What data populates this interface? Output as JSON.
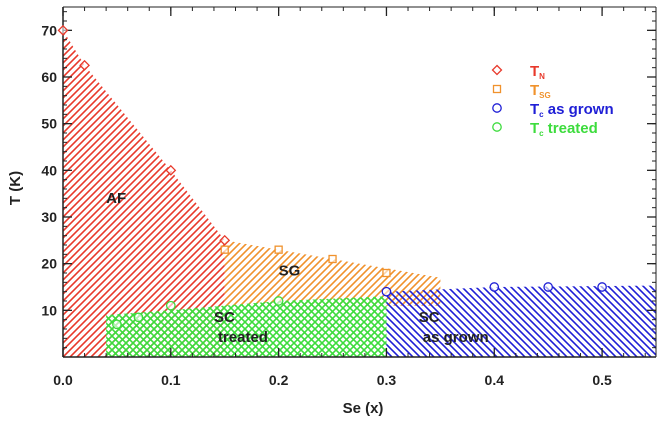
{
  "chart_data": {
    "type": "scatter",
    "xlabel": "Se (x)",
    "ylabel": "T (K)",
    "xlim": [
      0,
      0.55
    ],
    "ylim": [
      0,
      75
    ],
    "x_ticks": [
      0.0,
      0.1,
      0.2,
      0.3,
      0.4,
      0.5
    ],
    "x_tick_labels": [
      "0.0",
      "0.1",
      "0.2",
      "0.3",
      "0.4",
      "0.5"
    ],
    "y_ticks": [
      10,
      20,
      30,
      40,
      50,
      60,
      70
    ],
    "y_tick_labels": [
      "10",
      "20",
      "30",
      "40",
      "50",
      "60",
      "70"
    ],
    "legend_placement": "top-right",
    "series": [
      {
        "name": "T_N",
        "legend_main": "T",
        "legend_sub": "N",
        "marker": "diamond",
        "color": "#e8392b",
        "points": [
          {
            "x": 0.0,
            "y": 70
          },
          {
            "x": 0.02,
            "y": 62.5
          },
          {
            "x": 0.1,
            "y": 40
          },
          {
            "x": 0.15,
            "y": 25
          }
        ]
      },
      {
        "name": "T_SG",
        "legend_main": "T",
        "legend_sub": "SG",
        "marker": "square",
        "color": "#f0922c",
        "points": [
          {
            "x": 0.15,
            "y": 23
          },
          {
            "x": 0.2,
            "y": 23
          },
          {
            "x": 0.25,
            "y": 21
          },
          {
            "x": 0.3,
            "y": 18
          }
        ]
      },
      {
        "name": "T_c as grown",
        "legend_main": "T",
        "legend_sub": "c",
        "legend_rest": " as grown",
        "marker": "circle",
        "color": "#1f1fd6",
        "points": [
          {
            "x": 0.3,
            "y": 14
          },
          {
            "x": 0.4,
            "y": 15
          },
          {
            "x": 0.45,
            "y": 15
          },
          {
            "x": 0.5,
            "y": 15
          }
        ]
      },
      {
        "name": "T_c treated",
        "legend_main": "T",
        "legend_sub": "c",
        "legend_rest": " treated",
        "marker": "circle",
        "color": "#3ddc3d",
        "points": [
          {
            "x": 0.05,
            "y": 7
          },
          {
            "x": 0.07,
            "y": 8.5
          },
          {
            "x": 0.1,
            "y": 11
          },
          {
            "x": 0.2,
            "y": 12
          }
        ]
      }
    ],
    "regions": [
      {
        "name": "AF",
        "label_lines": [
          "AF"
        ],
        "color": "#e8392b",
        "hatch": "diagonal-up",
        "polygon": [
          [
            0,
            0
          ],
          [
            0,
            70
          ],
          [
            0.02,
            62.5
          ],
          [
            0.1,
            40
          ],
          [
            0.15,
            25
          ],
          [
            0.15,
            0
          ]
        ],
        "label_at": [
          0.04,
          33
        ]
      },
      {
        "name": "SG",
        "label_lines": [
          "SG"
        ],
        "color": "#f0922c",
        "hatch": "diagonal-up",
        "polygon": [
          [
            0.15,
            11
          ],
          [
            0.15,
            25
          ],
          [
            0.2,
            23
          ],
          [
            0.25,
            21
          ],
          [
            0.35,
            17
          ],
          [
            0.35,
            11
          ]
        ],
        "label_at": [
          0.2,
          17.5
        ]
      },
      {
        "name": "SC treated",
        "label_lines": [
          "SC",
          "treated"
        ],
        "color": "#3ddc3d",
        "hatch": "cross",
        "polygon": [
          [
            0.04,
            0
          ],
          [
            0.04,
            9
          ],
          [
            0.1,
            10
          ],
          [
            0.2,
            12
          ],
          [
            0.3,
            13
          ],
          [
            0.3,
            0
          ]
        ],
        "label_at": [
          0.14,
          7.5
        ]
      },
      {
        "name": "SC as grown",
        "label_lines": [
          "SC",
          "as grown"
        ],
        "color": "#1f1fd6",
        "hatch": "diagonal-down",
        "polygon": [
          [
            0.3,
            0
          ],
          [
            0.3,
            14
          ],
          [
            0.4,
            15
          ],
          [
            0.55,
            15.3
          ],
          [
            0.55,
            0
          ]
        ],
        "label_at": [
          0.33,
          7.5
        ]
      }
    ]
  }
}
